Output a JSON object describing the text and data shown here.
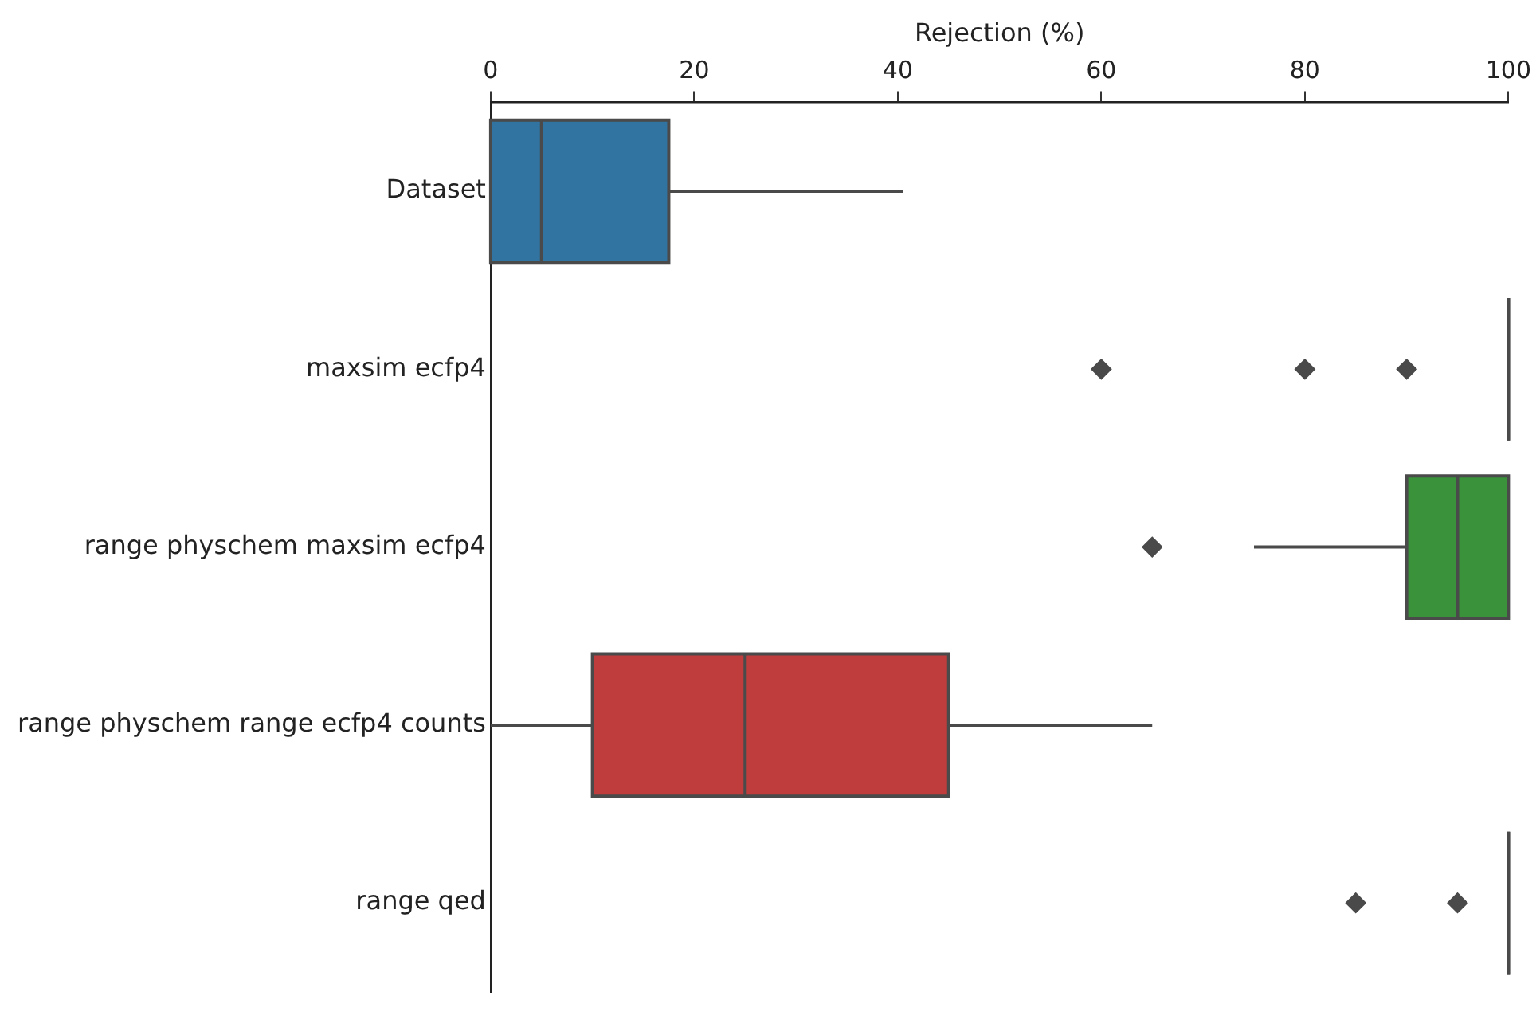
{
  "chart_data": {
    "type": "box",
    "orientation": "horizontal",
    "xlabel": "Rejection (%)",
    "categories": [
      "Dataset",
      "maxsim ecfp4",
      "range physchem maxsim ecfp4",
      "range physchem range ecfp4 counts",
      "range qed"
    ],
    "colors": [
      "#3274a1",
      "#4a4a4a",
      "#3a923a",
      "#c03d3e",
      "#4a4a4a"
    ],
    "boxes": [
      {
        "low": 0,
        "q1": 0,
        "median": 5,
        "q3": 17.5,
        "high": 40.5
      },
      {
        "low": 100,
        "q1": 100,
        "median": 100,
        "q3": 100,
        "high": 100,
        "outliers": [
          60,
          80,
          90
        ]
      },
      {
        "low": 75,
        "q1": 90,
        "median": 95,
        "q3": 100,
        "high": 100,
        "outliers": [
          65
        ]
      },
      {
        "low": 0,
        "q1": 10,
        "median": 25,
        "q3": 45,
        "high": 65
      },
      {
        "low": 100,
        "q1": 100,
        "median": 100,
        "q3": 100,
        "high": 100,
        "outliers": [
          85,
          95
        ]
      }
    ],
    "xlim": [
      0,
      100
    ],
    "xticks": [
      0,
      20,
      40,
      60,
      80,
      100
    ],
    "grid": false,
    "legend": false,
    "marker": "diamond"
  }
}
